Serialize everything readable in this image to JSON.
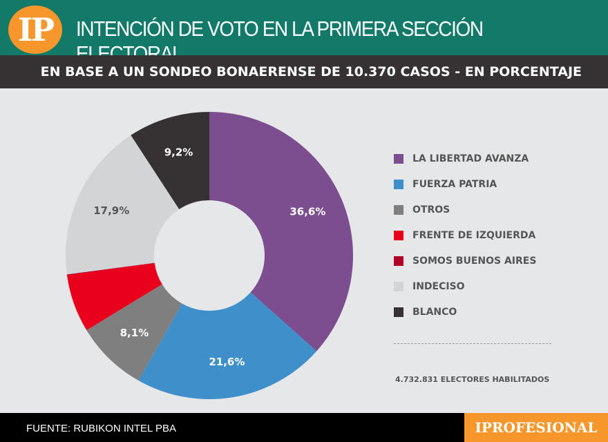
{
  "header": {
    "logo": "IP",
    "title": "INTENCIÓN DE VOTO EN LA PRIMERA SECCIÓN ELECTORAL",
    "subtitle": "EN BASE A UN SONDEO BONAERENSE DE 10.370 CASOS - EN PORCENTAJE"
  },
  "chart_data": {
    "type": "pie",
    "donut": true,
    "title": "INTENCIÓN DE VOTO EN LA PRIMERA SECCIÓN ELECTORAL",
    "legend_position": "right",
    "categories": [
      "LA LIBERTAD AVANZA",
      "FUERZA PATRIA",
      "OTROS",
      "FRENTE DE IZQUIERDA",
      "SOMOS BUENOS AIRES",
      "INDECISO",
      "BLANCO"
    ],
    "values": [
      36.6,
      21.6,
      8.1,
      6.5,
      0.1,
      17.9,
      9.2
    ],
    "labels": [
      "36,6%",
      "21,6%",
      "8,1%",
      "",
      "",
      "17,9%",
      "9,2%"
    ],
    "colors": [
      "#7c4d8f",
      "#3f8fcb",
      "#7f7f7f",
      "#e8001c",
      "#b0002a",
      "#d3d4d6",
      "#363132"
    ],
    "label_colors": [
      "#fff",
      "#fff",
      "#fff",
      "#fff",
      "#fff",
      "#555",
      "#fff"
    ]
  },
  "electores": "4.732.831 ELECTORES HABILITADOS",
  "footer": {
    "source": "FUENTE: RUBIKON INTEL PBA",
    "brand": "IPROFESIONAL"
  }
}
